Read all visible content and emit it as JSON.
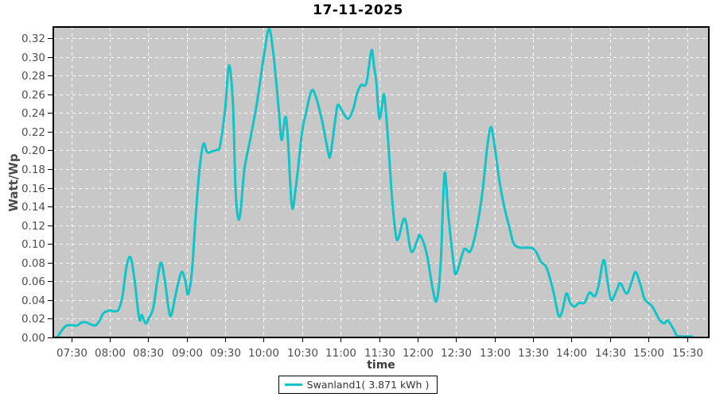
{
  "title": "17-11-2025",
  "chart_data": {
    "type": "line",
    "title": "17-11-2025",
    "xlabel": "time",
    "ylabel": "Watt/Wp",
    "x_ticks": [
      "07:30",
      "08:00",
      "08:30",
      "09:00",
      "09:30",
      "10:00",
      "10:30",
      "11:00",
      "11:30",
      "12:00",
      "12:30",
      "13:00",
      "13:30",
      "14:00",
      "14:30",
      "15:00",
      "15:30"
    ],
    "y_ticks": [
      0.0,
      0.02,
      0.04,
      0.06,
      0.08,
      0.1,
      0.12,
      0.14,
      0.16,
      0.18,
      0.2,
      0.22,
      0.24,
      0.26,
      0.28,
      0.3,
      0.32
    ],
    "x_domain_minutes": [
      436,
      947
    ],
    "y_domain": [
      0,
      0.332
    ],
    "grid": "white-dashed",
    "legend_position": "bottom-center",
    "colors": {
      "plot_background": "#c8c8c8",
      "grid_line": "#ffffff",
      "axis_border": "#000000",
      "tick_label": "#4d4d4d",
      "series_line": "#12c3c7"
    },
    "series": [
      {
        "name": "Swanland1( 3.871 kWh )",
        "color": "#12c3c7",
        "points": [
          [
            "07:19",
            0.0
          ],
          [
            "07:24",
            0.01
          ],
          [
            "07:27",
            0.013
          ],
          [
            "07:31",
            0.013
          ],
          [
            "07:35",
            0.013
          ],
          [
            "07:38",
            0.016
          ],
          [
            "07:42",
            0.016
          ],
          [
            "07:45",
            0.014
          ],
          [
            "07:49",
            0.013
          ],
          [
            "07:52",
            0.018
          ],
          [
            "07:55",
            0.026
          ],
          [
            "07:58",
            0.028
          ],
          [
            "08:00",
            0.029
          ],
          [
            "08:03",
            0.028
          ],
          [
            "08:07",
            0.03
          ],
          [
            "08:10",
            0.045
          ],
          [
            "08:13",
            0.075
          ],
          [
            "08:16",
            0.086
          ],
          [
            "08:19",
            0.065
          ],
          [
            "08:23",
            0.02
          ],
          [
            "08:25",
            0.024
          ],
          [
            "08:28",
            0.015
          ],
          [
            "08:31",
            0.022
          ],
          [
            "08:34",
            0.032
          ],
          [
            "08:37",
            0.06
          ],
          [
            "08:40",
            0.08
          ],
          [
            "08:43",
            0.06
          ],
          [
            "08:46",
            0.03
          ],
          [
            "08:48",
            0.024
          ],
          [
            "08:52",
            0.05
          ],
          [
            "08:56",
            0.07
          ],
          [
            "08:59",
            0.06
          ],
          [
            "09:01",
            0.046
          ],
          [
            "09:04",
            0.07
          ],
          [
            "09:07",
            0.13
          ],
          [
            "09:10",
            0.18
          ],
          [
            "09:13",
            0.207
          ],
          [
            "09:16",
            0.198
          ],
          [
            "09:20",
            0.199
          ],
          [
            "09:24",
            0.201
          ],
          [
            "09:26",
            0.205
          ],
          [
            "09:30",
            0.245
          ],
          [
            "09:33",
            0.291
          ],
          [
            "09:36",
            0.25
          ],
          [
            "09:38",
            0.16
          ],
          [
            "09:40",
            0.128
          ],
          [
            "09:42",
            0.135
          ],
          [
            "09:45",
            0.18
          ],
          [
            "09:50",
            0.215
          ],
          [
            "09:55",
            0.253
          ],
          [
            "10:00",
            0.3
          ],
          [
            "10:04",
            0.33
          ],
          [
            "10:07",
            0.31
          ],
          [
            "10:10",
            0.27
          ],
          [
            "10:12",
            0.24
          ],
          [
            "10:14",
            0.211
          ],
          [
            "10:17",
            0.236
          ],
          [
            "10:19",
            0.21
          ],
          [
            "10:22",
            0.14
          ],
          [
            "10:25",
            0.16
          ],
          [
            "10:30",
            0.22
          ],
          [
            "10:33",
            0.24
          ],
          [
            "10:37",
            0.263
          ],
          [
            "10:40",
            0.26
          ],
          [
            "10:45",
            0.235
          ],
          [
            "10:50",
            0.2
          ],
          [
            "10:52",
            0.195
          ],
          [
            "10:56",
            0.235
          ],
          [
            "10:58",
            0.249
          ],
          [
            "11:02",
            0.24
          ],
          [
            "11:06",
            0.234
          ],
          [
            "11:10",
            0.245
          ],
          [
            "11:13",
            0.262
          ],
          [
            "11:16",
            0.27
          ],
          [
            "11:20",
            0.272
          ],
          [
            "11:24",
            0.307
          ],
          [
            "11:26",
            0.29
          ],
          [
            "11:28",
            0.27
          ],
          [
            "11:30",
            0.235
          ],
          [
            "11:32",
            0.245
          ],
          [
            "11:34",
            0.259
          ],
          [
            "11:37",
            0.21
          ],
          [
            "11:40",
            0.15
          ],
          [
            "11:43",
            0.11
          ],
          [
            "11:45",
            0.106
          ],
          [
            "11:50",
            0.127
          ],
          [
            "11:55",
            0.092
          ],
          [
            "12:00",
            0.105
          ],
          [
            "12:02",
            0.109
          ],
          [
            "12:07",
            0.09
          ],
          [
            "12:12",
            0.05
          ],
          [
            "12:15",
            0.04
          ],
          [
            "12:18",
            0.08
          ],
          [
            "12:21",
            0.175
          ],
          [
            "12:24",
            0.13
          ],
          [
            "12:28",
            0.08
          ],
          [
            "12:30",
            0.068
          ],
          [
            "12:35",
            0.09
          ],
          [
            "12:37",
            0.095
          ],
          [
            "12:41",
            0.092
          ],
          [
            "12:45",
            0.11
          ],
          [
            "12:50",
            0.15
          ],
          [
            "12:54",
            0.2
          ],
          [
            "12:57",
            0.225
          ],
          [
            "13:00",
            0.205
          ],
          [
            "13:04",
            0.165
          ],
          [
            "13:08",
            0.137
          ],
          [
            "13:12",
            0.115
          ],
          [
            "13:15",
            0.1
          ],
          [
            "13:20",
            0.096
          ],
          [
            "13:26",
            0.096
          ],
          [
            "13:30",
            0.095
          ],
          [
            "13:33",
            0.09
          ],
          [
            "13:36",
            0.081
          ],
          [
            "13:40",
            0.076
          ],
          [
            "13:43",
            0.064
          ],
          [
            "13:46",
            0.048
          ],
          [
            "13:50",
            0.023
          ],
          [
            "13:53",
            0.03
          ],
          [
            "13:56",
            0.047
          ],
          [
            "13:59",
            0.037
          ],
          [
            "14:02",
            0.033
          ],
          [
            "14:06",
            0.037
          ],
          [
            "14:10",
            0.037
          ],
          [
            "14:14",
            0.048
          ],
          [
            "14:18",
            0.044
          ],
          [
            "14:21",
            0.055
          ],
          [
            "14:25",
            0.083
          ],
          [
            "14:28",
            0.06
          ],
          [
            "14:31",
            0.04
          ],
          [
            "14:35",
            0.05
          ],
          [
            "14:38",
            0.058
          ],
          [
            "14:43",
            0.047
          ],
          [
            "14:47",
            0.06
          ],
          [
            "14:50",
            0.07
          ],
          [
            "14:54",
            0.055
          ],
          [
            "14:57",
            0.041
          ],
          [
            "15:03",
            0.033
          ],
          [
            "15:08",
            0.02
          ],
          [
            "15:12",
            0.015
          ],
          [
            "15:15",
            0.018
          ],
          [
            "15:19",
            0.01
          ],
          [
            "15:22",
            0.002
          ],
          [
            "15:25",
            0.001
          ],
          [
            "15:30",
            0.001
          ],
          [
            "15:34",
            0.001
          ]
        ]
      }
    ]
  },
  "legend": {
    "label": "Swanland1( 3.871 kWh )"
  }
}
